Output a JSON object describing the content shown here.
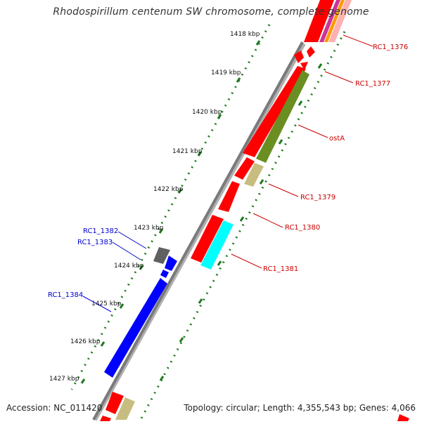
{
  "title": "Rhodospirillum centenum SW chromosome, complete genome",
  "footer": {
    "accession": "Accession: NC_011420",
    "summary": "Topology: circular; Length: 4,355,543 bp; Genes: 4,066"
  },
  "ticks": [
    {
      "label": "1418 kbp"
    },
    {
      "label": "1419 kbp"
    },
    {
      "label": "1420 kbp"
    },
    {
      "label": "1421 kbp"
    },
    {
      "label": "1422 kbp"
    },
    {
      "label": "1423 kbp"
    },
    {
      "label": "1424 kbp"
    },
    {
      "label": "1425 kbp"
    },
    {
      "label": "1426 kbp"
    },
    {
      "label": "1427 kbp"
    }
  ],
  "gene_labels": [
    {
      "label": "RC1_1376",
      "color": "#cc0000"
    },
    {
      "label": "RC1_1377",
      "color": "#cc0000"
    },
    {
      "label": "ostA",
      "color": "#cc0000"
    },
    {
      "label": "RC1_1379",
      "color": "#cc0000"
    },
    {
      "label": "RC1_1380",
      "color": "#cc0000"
    },
    {
      "label": "RC1_1381",
      "color": "#cc0000"
    },
    {
      "label": "RC1_1382",
      "color": "#0000cc"
    },
    {
      "label": "RC1_1383",
      "color": "#0000cc"
    },
    {
      "label": "RC1_1384",
      "color": "#0000cc"
    }
  ],
  "colors": {
    "red": "#ff0000",
    "olive": "#6b8e23",
    "khaki": "#c8bd80",
    "cyan": "#00ffff",
    "blue": "#0000ff",
    "gray": "#707070",
    "backbone": "#8c8c8c",
    "tick": "#1f7a1f"
  }
}
